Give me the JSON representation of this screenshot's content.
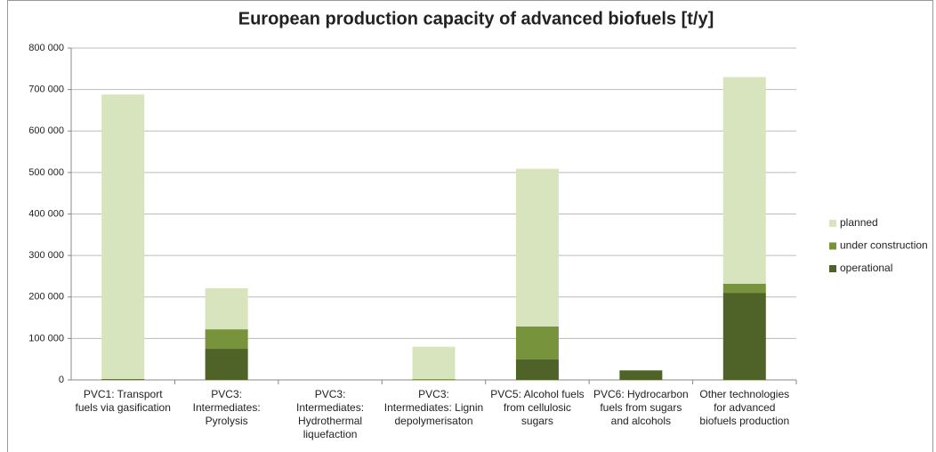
{
  "chart_data": {
    "type": "bar",
    "stacked": true,
    "title": "European production capacity of advanced biofuels [t/y]",
    "categories": [
      "PVC1: Transport fuels via gasification",
      "PVC3: Intermediates: Pyrolysis",
      "PVC3: Intermediates: Hydrothermal liquefaction",
      "PVC3: Intermediates: Lignin depolymerisaton",
      "PVC5: Alcohol fuels from cellulosic sugars",
      "PVC6: Hydrocarbon fuels from sugars and alcohols",
      "Other technologies for advanced biofuels production"
    ],
    "series": [
      {
        "name": "operational",
        "color": "#4f6228",
        "values": [
          2000,
          75000,
          0,
          0,
          50000,
          23000,
          210000
        ]
      },
      {
        "name": "under construction",
        "color": "#77933c",
        "values": [
          0,
          47000,
          0,
          2000,
          79000,
          0,
          22000
        ]
      },
      {
        "name": "planned",
        "color": "#d7e4bd",
        "values": [
          686000,
          99000,
          0,
          78000,
          380000,
          0,
          498000
        ]
      }
    ],
    "ylim": [
      0,
      800000
    ],
    "yticks": [
      0,
      {
        "value": 100000,
        "label": "100 000"
      },
      {
        "value": 200000,
        "label": "200 000"
      },
      {
        "value": 300000,
        "label": "300 000"
      },
      {
        "value": 400000,
        "label": "400 000"
      },
      {
        "value": 500000,
        "label": "500 000"
      },
      {
        "value": 600000,
        "label": "600 000"
      },
      {
        "value": 700000,
        "label": "700 000"
      },
      {
        "value": 800000,
        "label": "800 000"
      }
    ],
    "grid": true,
    "legend": "right"
  }
}
